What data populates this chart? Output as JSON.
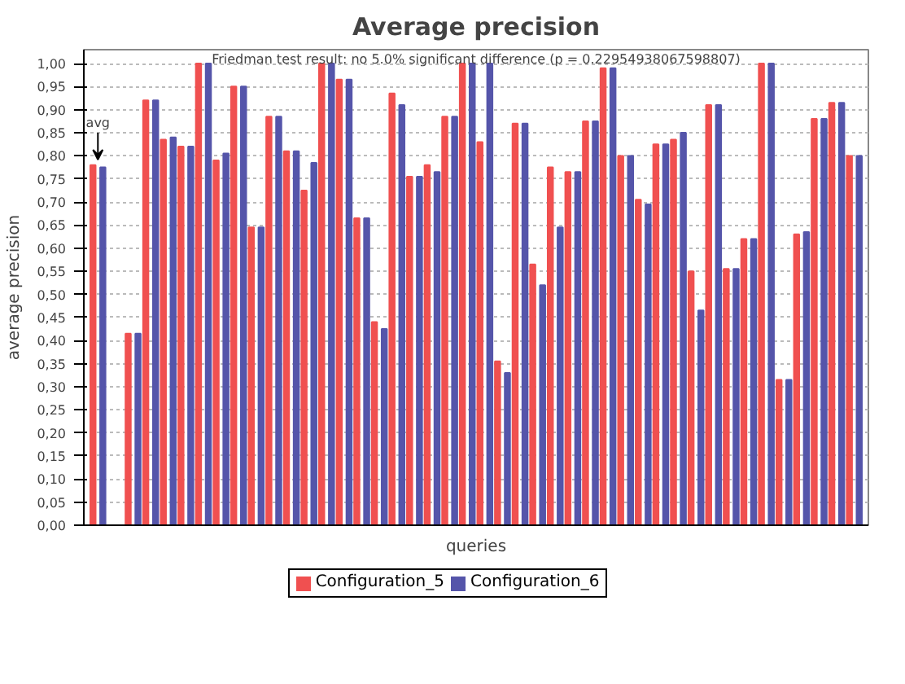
{
  "chart_data": {
    "type": "bar",
    "title": "Average precision",
    "xlabel": "queries",
    "ylabel": "average precision",
    "annotations": [
      "Friedman test result: no 5.0% significant difference (p = 0.22954938067598807)",
      {
        "text": "avg",
        "y": 0.78
      }
    ],
    "categories": [
      null,
      null,
      null,
      null,
      null,
      null,
      null,
      null,
      null,
      null,
      null,
      null,
      null,
      null,
      null,
      null,
      null,
      null,
      null,
      null,
      null,
      null,
      null,
      null,
      null,
      null,
      null,
      null,
      null,
      null,
      null,
      null,
      null,
      null,
      null,
      null,
      null,
      null,
      null,
      null,
      null,
      null,
      null,
      null
    ],
    "series": [
      {
        "name": "Configuration_5",
        "color": "#f05050",
        "values": [
          0.78,
          null,
          0.415,
          0.92,
          0.835,
          0.82,
          1.0,
          0.79,
          0.95,
          0.645,
          0.885,
          0.81,
          0.725,
          1.0,
          0.965,
          0.665,
          0.44,
          0.935,
          0.755,
          0.78,
          0.885,
          1.0,
          0.83,
          0.355,
          0.87,
          0.565,
          0.775,
          0.765,
          0.875,
          0.99,
          0.8,
          0.705,
          0.825,
          0.835,
          0.55,
          0.91,
          0.555,
          0.62,
          1.0,
          0.315,
          0.63,
          0.88,
          0.915,
          0.8
        ]
      },
      {
        "name": "Configuration_6",
        "color": "#5555aa",
        "values": [
          0.775,
          null,
          0.415,
          0.92,
          0.84,
          0.82,
          1.0,
          0.805,
          0.95,
          0.645,
          0.885,
          0.81,
          0.785,
          1.0,
          0.965,
          0.665,
          0.425,
          0.91,
          0.755,
          0.765,
          0.885,
          1.0,
          1.0,
          0.33,
          0.87,
          0.52,
          0.645,
          0.765,
          0.875,
          0.99,
          0.8,
          0.695,
          0.825,
          0.85,
          0.465,
          0.91,
          0.555,
          0.62,
          1.0,
          0.315,
          0.635,
          0.88,
          0.915,
          0.8
        ]
      }
    ],
    "ylim": [
      0,
      1.03
    ],
    "yticks": [
      {
        "value": 0,
        "label": "0,00"
      },
      {
        "value": 0.05,
        "label": "0,05"
      },
      {
        "value": 0.1,
        "label": "0,10"
      },
      {
        "value": 0.15,
        "label": "0,15"
      },
      {
        "value": 0.2,
        "label": "0,20"
      },
      {
        "value": 0.25,
        "label": "0,25"
      },
      {
        "value": 0.3,
        "label": "0,30"
      },
      {
        "value": 0.35,
        "label": "0,35"
      },
      {
        "value": 0.4,
        "label": "0,40"
      },
      {
        "value": 0.45,
        "label": "0,45"
      },
      {
        "value": 0.5,
        "label": "0,50"
      },
      {
        "value": 0.55,
        "label": "0,55"
      },
      {
        "value": 0.6,
        "label": "0,60"
      },
      {
        "value": 0.65,
        "label": "0,65"
      },
      {
        "value": 0.7,
        "label": "0,70"
      },
      {
        "value": 0.75,
        "label": "0,75"
      },
      {
        "value": 0.8,
        "label": "0,80"
      },
      {
        "value": 0.85,
        "label": "0,85"
      },
      {
        "value": 0.9,
        "label": "0,90"
      },
      {
        "value": 0.95,
        "label": "0,95"
      },
      {
        "value": 1.0,
        "label": "1,00"
      }
    ],
    "grid": "y",
    "legend": "bottom",
    "tick_labels": "y"
  }
}
